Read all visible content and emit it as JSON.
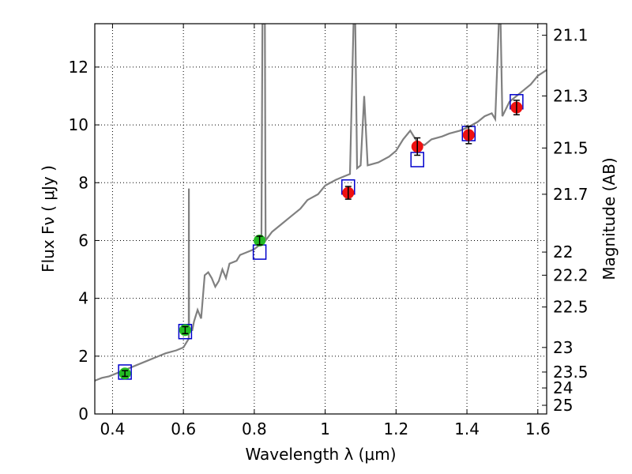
{
  "chart_data": {
    "type": "scatter",
    "title": "",
    "xlabel": "Wavelength  λ (μm)",
    "ylabel": "Flux  Fν  ( μJy )",
    "ylabel_right": "Magnitude (AB)",
    "xlim": [
      0.35,
      1.625
    ],
    "ylim": [
      0,
      13.5
    ],
    "grid": true,
    "x_ticks": [
      0.4,
      0.6,
      0.8,
      1.0,
      1.2,
      1.4,
      1.6
    ],
    "x_tick_labels": [
      "0.4",
      "0.6",
      "0.8",
      "1",
      "1.2",
      "1.4",
      "1.6"
    ],
    "y_ticks": [
      0,
      2,
      4,
      6,
      8,
      10,
      12
    ],
    "y_tick_labels": [
      "0",
      "2",
      "4",
      "6",
      "8",
      "10",
      "12"
    ],
    "right_ticks": [
      {
        "flux": 13.1,
        "label": "21.1"
      },
      {
        "flux": 11.0,
        "label": "21.3"
      },
      {
        "flux": 9.2,
        "label": "21.5"
      },
      {
        "flux": 7.6,
        "label": "21.7"
      },
      {
        "flux": 5.6,
        "label": "22"
      },
      {
        "flux": 4.8,
        "label": "22.2"
      },
      {
        "flux": 3.7,
        "label": "22.5"
      },
      {
        "flux": 2.3,
        "label": "23"
      },
      {
        "flux": 1.45,
        "label": "23.5"
      },
      {
        "flux": 0.9,
        "label": "24"
      },
      {
        "flux": 0.3,
        "label": "25"
      }
    ],
    "colors": {
      "spectrum": "#808080",
      "model_box": "#0000cc",
      "green": "#22bb22",
      "red": "#ee1111",
      "error": "#000000",
      "grid": "#000000"
    },
    "series": [
      {
        "kind": "spectrum",
        "points": [
          [
            0.35,
            1.15
          ],
          [
            0.37,
            1.25
          ],
          [
            0.39,
            1.3
          ],
          [
            0.41,
            1.4
          ],
          [
            0.43,
            1.5
          ],
          [
            0.45,
            1.6
          ],
          [
            0.47,
            1.7
          ],
          [
            0.5,
            1.85
          ],
          [
            0.52,
            1.95
          ],
          [
            0.55,
            2.1
          ],
          [
            0.58,
            2.2
          ],
          [
            0.6,
            2.3
          ],
          [
            0.61,
            2.5
          ],
          [
            0.615,
            2.6
          ],
          [
            0.6155,
            7.8
          ],
          [
            0.616,
            2.9
          ],
          [
            0.625,
            2.9
          ],
          [
            0.63,
            3.2
          ],
          [
            0.64,
            3.6
          ],
          [
            0.65,
            3.3
          ],
          [
            0.66,
            4.8
          ],
          [
            0.67,
            4.9
          ],
          [
            0.68,
            4.7
          ],
          [
            0.69,
            4.4
          ],
          [
            0.7,
            4.6
          ],
          [
            0.71,
            5.0
          ],
          [
            0.72,
            4.7
          ],
          [
            0.73,
            5.2
          ],
          [
            0.75,
            5.3
          ],
          [
            0.76,
            5.5
          ],
          [
            0.78,
            5.6
          ],
          [
            0.8,
            5.7
          ],
          [
            0.82,
            5.9
          ],
          [
            0.823,
            13.5
          ],
          [
            0.83,
            13.5
          ],
          [
            0.832,
            6.0
          ],
          [
            0.85,
            6.3
          ],
          [
            0.88,
            6.6
          ],
          [
            0.9,
            6.8
          ],
          [
            0.93,
            7.1
          ],
          [
            0.95,
            7.4
          ],
          [
            0.98,
            7.6
          ],
          [
            1.0,
            7.9
          ],
          [
            1.03,
            8.1
          ],
          [
            1.05,
            8.2
          ],
          [
            1.07,
            8.3
          ],
          [
            1.08,
            13.5
          ],
          [
            1.085,
            13.5
          ],
          [
            1.09,
            8.5
          ],
          [
            1.1,
            8.6
          ],
          [
            1.11,
            11.0
          ],
          [
            1.12,
            8.6
          ],
          [
            1.15,
            8.7
          ],
          [
            1.18,
            8.9
          ],
          [
            1.2,
            9.1
          ],
          [
            1.22,
            9.5
          ],
          [
            1.24,
            9.8
          ],
          [
            1.26,
            9.4
          ],
          [
            1.28,
            9.3
          ],
          [
            1.3,
            9.5
          ],
          [
            1.33,
            9.6
          ],
          [
            1.35,
            9.7
          ],
          [
            1.38,
            9.8
          ],
          [
            1.4,
            9.9
          ],
          [
            1.43,
            10.1
          ],
          [
            1.45,
            10.3
          ],
          [
            1.47,
            10.4
          ],
          [
            1.48,
            10.2
          ],
          [
            1.49,
            13.5
          ],
          [
            1.495,
            13.5
          ],
          [
            1.5,
            10.3
          ],
          [
            1.52,
            10.8
          ],
          [
            1.54,
            11.0
          ],
          [
            1.56,
            11.2
          ],
          [
            1.58,
            11.4
          ],
          [
            1.6,
            11.7
          ],
          [
            1.625,
            11.9
          ]
        ]
      },
      {
        "kind": "model_boxes",
        "points": [
          [
            0.435,
            1.45
          ],
          [
            0.605,
            2.85
          ],
          [
            0.815,
            5.6
          ],
          [
            1.065,
            7.85
          ],
          [
            1.26,
            8.8
          ],
          [
            1.405,
            9.7
          ],
          [
            1.54,
            10.8
          ]
        ]
      },
      {
        "kind": "observed",
        "color": "green",
        "points": [
          {
            "x": 0.435,
            "y": 1.4,
            "err": 0.1
          },
          {
            "x": 0.605,
            "y": 2.9,
            "err": 0.12
          },
          {
            "x": 0.815,
            "y": 6.0,
            "err": 0.15
          }
        ]
      },
      {
        "kind": "observed",
        "color": "red",
        "points": [
          {
            "x": 1.065,
            "y": 7.65,
            "err": 0.22
          },
          {
            "x": 1.26,
            "y": 9.25,
            "err": 0.3
          },
          {
            "x": 1.405,
            "y": 9.65,
            "err": 0.3
          },
          {
            "x": 1.54,
            "y": 10.6,
            "err": 0.25
          }
        ]
      }
    ]
  }
}
